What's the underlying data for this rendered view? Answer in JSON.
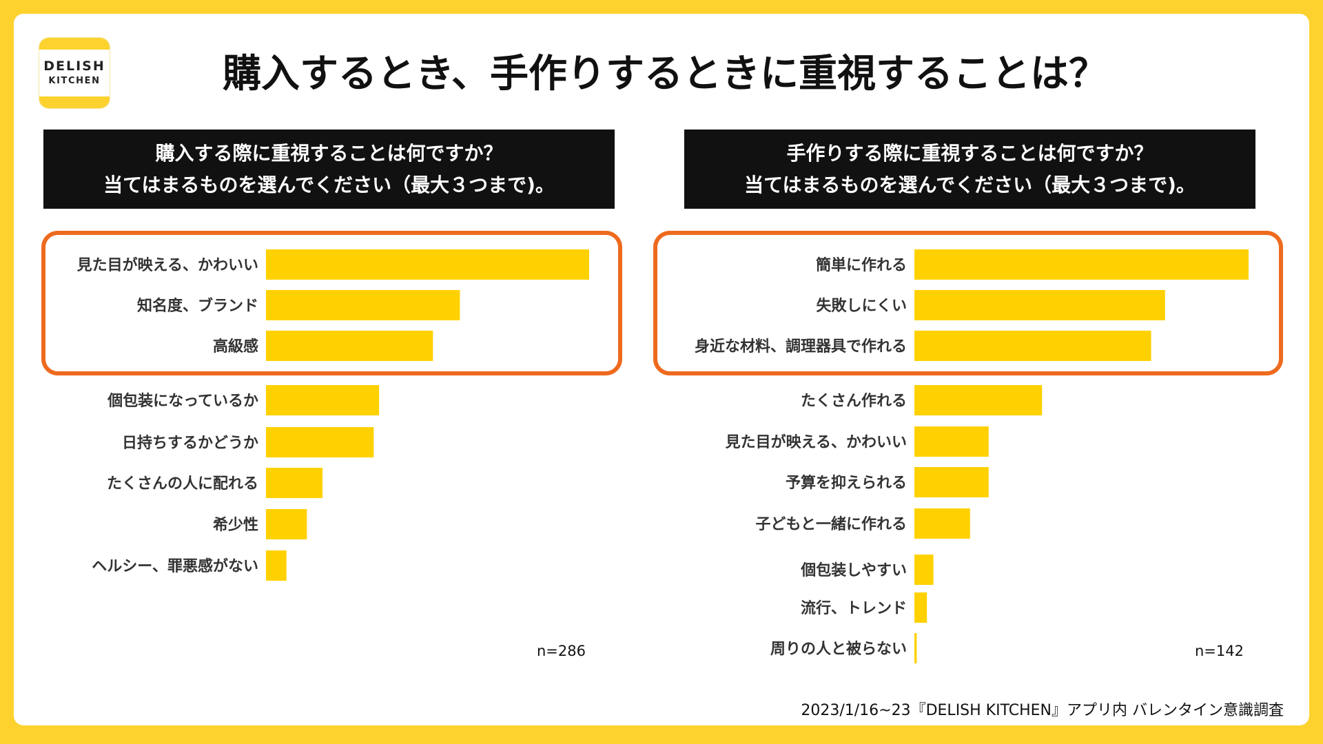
{
  "logo": {
    "line1": "DELISH",
    "line2": "KITCHEN"
  },
  "title": "購入するとき、手作りするときに重視することは？",
  "footer": "2023/1/16~23『DELISH KITCHEN』アプリ内 バレンタイン意識調査",
  "colors": {
    "bar": "#FFD100",
    "highlight": "#EE6A1E",
    "background": "#FDD22E"
  },
  "chart_data": [
    {
      "type": "bar",
      "orientation": "horizontal",
      "question_line1": "購入する際に重視することは何ですか？",
      "question_line2": "当てはまるものを選んでください（最大３つまで)。",
      "n": "n=286",
      "highlighted_top": 3,
      "categories": [
        "見た目が映える、かわいい",
        "知名度、ブランド",
        "高級感",
        "個包装になっているか",
        "日持ちするかどうか",
        "たくさんの人に配れる",
        "希少性",
        "ヘルシー、罪悪感がない"
      ],
      "values": [
        60,
        36,
        31,
        21,
        20,
        10.5,
        7.6,
        3.8
      ],
      "xlim": [
        0,
        60
      ]
    },
    {
      "type": "bar",
      "orientation": "horizontal",
      "question_line1": "手作りする際に重視することは何ですか？",
      "question_line2": "当てはまるものを選んでください（最大３つまで)。",
      "n": "n=142",
      "highlighted_top": 3,
      "categories": [
        "簡単に作れる",
        "失敗しにくい",
        "身近な材料、調理器具で作れる",
        "たくさん作れる",
        "見た目が映える、かわいい",
        "予算を抑えられる",
        "子どもと一緒に作れる",
        "個包装しやすい",
        "流行、トレンド",
        "周りの人と被らない"
      ],
      "values": [
        72,
        54,
        51,
        27.5,
        16,
        16,
        12,
        4.1,
        2.7,
        0.5
      ],
      "xlim": [
        0,
        72
      ]
    }
  ]
}
